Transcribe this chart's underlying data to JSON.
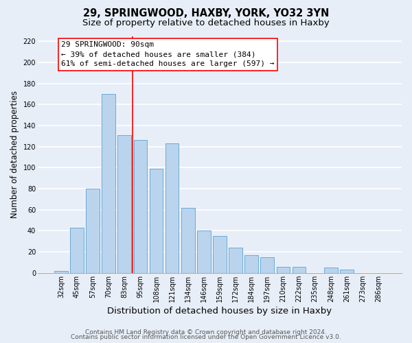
{
  "title": "29, SPRINGWOOD, HAXBY, YORK, YO32 3YN",
  "subtitle": "Size of property relative to detached houses in Haxby",
  "xlabel": "Distribution of detached houses by size in Haxby",
  "ylabel": "Number of detached properties",
  "categories": [
    "32sqm",
    "45sqm",
    "57sqm",
    "70sqm",
    "83sqm",
    "95sqm",
    "108sqm",
    "121sqm",
    "134sqm",
    "146sqm",
    "159sqm",
    "172sqm",
    "184sqm",
    "197sqm",
    "210sqm",
    "222sqm",
    "235sqm",
    "248sqm",
    "261sqm",
    "273sqm",
    "286sqm"
  ],
  "values": [
    2,
    43,
    80,
    170,
    131,
    126,
    99,
    123,
    62,
    40,
    35,
    24,
    17,
    15,
    6,
    6,
    0,
    5,
    3,
    0,
    0
  ],
  "bar_color": "#bad4ed",
  "bar_edge_color": "#6aaad4",
  "background_color": "#e8eef8",
  "grid_color": "#ffffff",
  "marker_label": "29 SPRINGWOOD: 90sqm",
  "annotation_line1": "← 39% of detached houses are smaller (384)",
  "annotation_line2": "61% of semi-detached houses are larger (597) →",
  "ylim": [
    0,
    225
  ],
  "yticks": [
    0,
    20,
    40,
    60,
    80,
    100,
    120,
    140,
    160,
    180,
    200,
    220
  ],
  "footer1": "Contains HM Land Registry data © Crown copyright and database right 2024.",
  "footer2": "Contains public sector information licensed under the Open Government Licence v3.0.",
  "title_fontsize": 10.5,
  "subtitle_fontsize": 9.5,
  "xlabel_fontsize": 9.5,
  "ylabel_fontsize": 8.5,
  "tick_fontsize": 7,
  "annotation_fontsize": 8,
  "footer_fontsize": 6.5
}
